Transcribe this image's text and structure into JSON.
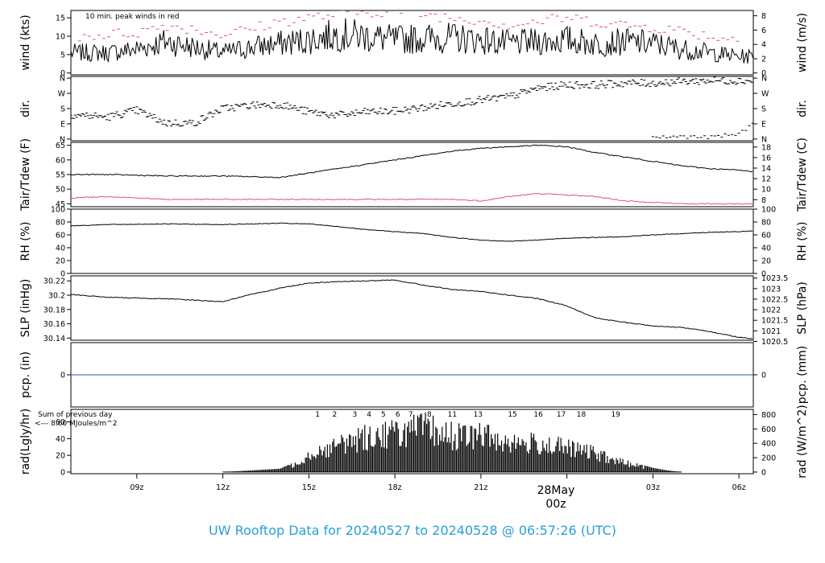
{
  "title": "UW Rooftop Data for 20240527  to  20240528 @ 06:57:26  (UTC)",
  "colors": {
    "title": "#2a9fd8",
    "peak": "#df536b",
    "dew": "#df536b",
    "pcp": "#2e5ea8",
    "sun": "#b32db5",
    "date": "#df536b"
  },
  "date_label": {
    "line1": "28May",
    "line2": "00z"
  },
  "x_axis": {
    "hours_range": [
      6.7,
      30.5
    ],
    "tick_hours": [
      9,
      12,
      15,
      18,
      21,
      27,
      30
    ],
    "tick_labels": [
      "09z",
      "12z",
      "15z",
      "18z",
      "21z",
      "03z",
      "06z"
    ]
  },
  "chart_data": [
    {
      "type": "line",
      "panel": "wind",
      "ylabel_left": "wind (kts)",
      "ylabel_right": "wind (m/s)",
      "annotation": "10 min. peak winds in red",
      "ylim": [
        -0.5,
        17
      ],
      "yticks_left": [
        0,
        5,
        10,
        15
      ],
      "yticks_right": [
        0,
        2,
        4,
        6,
        8
      ],
      "series": [
        {
          "x": [
            6.7,
            8,
            9,
            10,
            11,
            12,
            13,
            14,
            15,
            16,
            17,
            18,
            19,
            20,
            21,
            22,
            23,
            24,
            25,
            26,
            27,
            28,
            29,
            30,
            30.5
          ],
          "y": [
            5.5,
            5.5,
            6.5,
            8.5,
            7,
            5.5,
            7,
            8,
            9,
            10.5,
            10,
            9,
            9.5,
            9.5,
            9,
            8,
            8.5,
            9,
            8,
            8.5,
            8,
            6.5,
            5.5,
            4.5,
            4.5
          ]
        },
        {
          "x": [
            7,
            8,
            9,
            10,
            11,
            12,
            13,
            14,
            15,
            16,
            17,
            18,
            19,
            20,
            21,
            22,
            23,
            24,
            25,
            26,
            27,
            28,
            29,
            30
          ],
          "y": [
            10,
            10.5,
            11,
            13,
            12,
            10.5,
            12,
            14,
            15,
            16,
            16.5,
            17,
            16,
            15,
            14.5,
            13,
            14,
            15,
            14,
            13,
            12.5,
            11.5,
            10,
            9
          ]
        }
      ]
    },
    {
      "type": "scatter",
      "panel": "dir",
      "ylabel_left": "dir.",
      "ylabel_right": "dir.",
      "ylim": [
        -10,
        370
      ],
      "yticks_labels": [
        "N",
        "E",
        "S",
        "W",
        "N"
      ],
      "yticks_values": [
        0,
        90,
        180,
        270,
        360
      ],
      "series": [
        {
          "x": [
            6.7,
            8,
            9,
            10,
            11,
            12,
            13,
            14,
            15,
            16,
            17,
            18,
            19,
            20,
            21,
            22,
            23,
            24,
            25,
            26,
            27,
            28,
            29,
            30,
            30.5
          ],
          "y": [
            145,
            130,
            170,
            95,
            95,
            180,
            200,
            205,
            160,
            140,
            160,
            165,
            185,
            210,
            230,
            250,
            300,
            320,
            320,
            330,
            330,
            340,
            345,
            345,
            345
          ]
        },
        {
          "x": [
            27,
            28,
            29,
            30,
            30.5
          ],
          "y": [
            10,
            15,
            10,
            30,
            90
          ]
        }
      ]
    },
    {
      "type": "line",
      "panel": "temp",
      "ylabel_left": "Tair/Tdew (F)",
      "ylabel_right": "Tair/Tdew (C)",
      "ylim": [
        44,
        66
      ],
      "yticks_left": [
        45,
        50,
        55,
        60,
        65
      ],
      "yticks_right_celsius": [
        8,
        10,
        12,
        14,
        16,
        18
      ],
      "series": [
        {
          "x": [
            6.7,
            8,
            10,
            12,
            14,
            15,
            16,
            17,
            18,
            19,
            20,
            21,
            22,
            23,
            24,
            25,
            26,
            27,
            28,
            29,
            30,
            30.5
          ],
          "y": [
            55,
            55,
            54.5,
            54.5,
            54,
            55.5,
            57,
            58.5,
            60,
            61.5,
            63,
            64,
            64.5,
            65,
            64.5,
            62.5,
            61,
            59.5,
            58,
            57,
            56.5,
            56
          ]
        },
        {
          "x": [
            6.7,
            8,
            10,
            12,
            14,
            16,
            18,
            20,
            21,
            22,
            23,
            24,
            25,
            26,
            27,
            28,
            29,
            30,
            30.5
          ],
          "y": [
            47,
            47.5,
            46.5,
            46.5,
            46.5,
            46.5,
            46.5,
            46.5,
            46,
            47.5,
            48.5,
            48,
            47.5,
            46,
            45.5,
            45,
            45,
            45,
            45
          ]
        }
      ]
    },
    {
      "type": "line",
      "panel": "rh",
      "ylabel_left": "RH (%)",
      "ylabel_right": "RH (%)",
      "ylim": [
        0,
        100
      ],
      "yticks_left": [
        0,
        20,
        40,
        60,
        80,
        100
      ],
      "yticks_right": [
        0,
        20,
        40,
        60,
        80,
        100
      ],
      "series": [
        {
          "x": [
            6.7,
            8,
            10,
            12,
            14,
            15,
            16,
            17,
            18,
            19,
            20,
            21,
            22,
            23,
            24,
            25,
            26,
            27,
            28,
            29,
            30,
            30.5
          ],
          "y": [
            74,
            76,
            77,
            76,
            78,
            77,
            73,
            68,
            65,
            62,
            56,
            52,
            50,
            52,
            55,
            56,
            57,
            60,
            62,
            64,
            65,
            66
          ]
        }
      ]
    },
    {
      "type": "line",
      "panel": "slp",
      "ylabel_left": "SLP (inHg)",
      "ylabel_right": "SLP (hPa)",
      "ylim": [
        30.137,
        30.227
      ],
      "yticks_left": [
        30.14,
        30.16,
        30.18,
        30.2,
        30.22
      ],
      "yticks_right_labels": [
        "1020.5",
        "1021",
        "1021.5",
        "1022",
        "1022.5",
        "1023",
        "1023.5"
      ],
      "series": [
        {
          "x": [
            6.7,
            8,
            10,
            12,
            13,
            14,
            15,
            16,
            17,
            18,
            19,
            20,
            21,
            22,
            23,
            24,
            25,
            26,
            27,
            28,
            29,
            30,
            30.5
          ],
          "y": [
            30.201,
            30.197,
            30.195,
            30.191,
            30.201,
            30.21,
            30.217,
            30.219,
            30.22,
            30.221,
            30.214,
            30.208,
            30.205,
            30.2,
            30.195,
            30.185,
            30.168,
            30.162,
            30.157,
            30.155,
            30.149,
            30.141,
            30.139
          ]
        }
      ]
    },
    {
      "type": "line",
      "panel": "pcp",
      "ylabel_left": "pcp. (in)",
      "ylabel_right": "pcp. (mm)",
      "ylim": [
        -1,
        1
      ],
      "yticks_left": [
        0
      ],
      "yticks_right": [
        0
      ],
      "series": [
        {
          "x": [
            6.7,
            30.5
          ],
          "y": [
            0,
            0
          ]
        }
      ]
    },
    {
      "type": "bar",
      "panel": "rad",
      "ylabel_left": "rad(Lgly/hr)",
      "ylabel_right": "rad (W/m^2)",
      "note_line1": "Sum of previous day",
      "note_line2": "<--- 8.60 MJoules/m^2",
      "ylim": [
        -2,
        75
      ],
      "yticks_left": [
        0,
        20,
        40,
        60
      ],
      "yticks_right": [
        0,
        200,
        400,
        600,
        800
      ],
      "sun_hour_labels": [
        "1",
        "2",
        "3",
        "4",
        "5",
        "6",
        "7",
        "8",
        "11",
        "13",
        "15",
        "16",
        "17",
        "18",
        "19"
      ],
      "sun_hour_x": [
        15.3,
        15.9,
        16.6,
        17.1,
        17.6,
        18.1,
        18.55,
        19.2,
        20,
        20.9,
        22.1,
        23,
        23.8,
        24.5,
        25.7
      ],
      "series": [
        {
          "x": [
            12,
            13,
            13.5,
            14,
            14.5,
            15,
            15.5,
            16,
            16.5,
            17,
            17.5,
            18,
            18.5,
            19,
            19.5,
            20,
            20.5,
            21,
            21.5,
            22,
            22.5,
            23,
            23.5,
            24,
            24.5,
            25,
            25.5,
            26,
            26.5,
            27,
            27.5,
            28
          ],
          "y": [
            0,
            2,
            3,
            4,
            12,
            28,
            35,
            42,
            50,
            55,
            60,
            62,
            65,
            70,
            62,
            58,
            55,
            60,
            52,
            48,
            45,
            45,
            42,
            38,
            34,
            30,
            20,
            15,
            10,
            5,
            2,
            0
          ]
        }
      ]
    }
  ]
}
